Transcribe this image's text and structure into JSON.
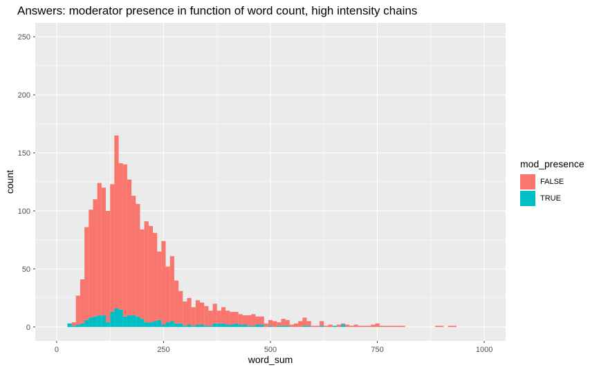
{
  "chart_data": {
    "type": "bar",
    "subtype": "stacked-histogram",
    "title": "Answers: moderator presence in function of word count, high intensity chains",
    "xlabel": "word_sum",
    "ylabel": "count",
    "xlim": [
      -50,
      1050
    ],
    "ylim": [
      -12,
      262
    ],
    "x_ticks": [
      0,
      250,
      500,
      750,
      1000
    ],
    "y_ticks": [
      0,
      50,
      100,
      150,
      200,
      250
    ],
    "bin_width": 10,
    "grid": true,
    "legend_title": "mod_presence",
    "legend_position": "right",
    "x": [
      30,
      40,
      50,
      60,
      70,
      80,
      90,
      100,
      110,
      120,
      130,
      140,
      150,
      160,
      170,
      180,
      190,
      200,
      210,
      220,
      230,
      240,
      250,
      260,
      270,
      280,
      290,
      300,
      310,
      320,
      330,
      340,
      350,
      360,
      370,
      380,
      390,
      400,
      410,
      420,
      430,
      440,
      450,
      460,
      470,
      480,
      490,
      500,
      510,
      520,
      530,
      540,
      550,
      560,
      570,
      580,
      590,
      600,
      610,
      620,
      630,
      640,
      650,
      660,
      670,
      680,
      690,
      700,
      710,
      720,
      730,
      740,
      750,
      760,
      770,
      780,
      790,
      800,
      810,
      890,
      900,
      920,
      930
    ],
    "series": [
      {
        "name": "FALSE",
        "color": "#F8766D",
        "values": [
          0,
          3,
          25,
          38,
          80,
          93,
          101,
          114,
          110,
          96,
          110,
          149,
          126,
          131,
          117,
          103,
          97,
          77,
          87,
          83,
          76,
          59,
          72,
          48,
          56,
          37,
          28,
          21,
          23,
          16,
          21,
          19,
          17,
          13,
          17,
          11,
          14,
          12,
          11,
          10,
          9,
          8,
          9,
          10,
          7,
          7,
          3,
          5,
          5,
          3,
          6,
          5,
          2,
          3,
          5,
          7,
          4,
          1,
          1,
          4,
          1,
          2,
          0,
          2,
          1,
          2,
          1,
          2,
          1,
          1,
          1,
          2,
          3,
          1,
          1,
          1,
          1,
          1,
          1,
          1,
          1,
          1,
          1
        ]
      },
      {
        "name": "TRUE",
        "color": "#00BFC4",
        "values": [
          3,
          1,
          2,
          3,
          6,
          8,
          9,
          10,
          10,
          4,
          13,
          16,
          15,
          9,
          10,
          10,
          9,
          7,
          4,
          4,
          5,
          6,
          2,
          4,
          5,
          3,
          3,
          1,
          2,
          1,
          2,
          2,
          1,
          1,
          3,
          3,
          3,
          2,
          2,
          3,
          2,
          2,
          1,
          1,
          2,
          2,
          0,
          1,
          0,
          1,
          1,
          1,
          0,
          0,
          0,
          1,
          1,
          0,
          0,
          1,
          0,
          0,
          1,
          0,
          2,
          0,
          0,
          0,
          0,
          0,
          0,
          0,
          0,
          0,
          0,
          0,
          0,
          0,
          0,
          0,
          0,
          0,
          0
        ]
      }
    ]
  }
}
